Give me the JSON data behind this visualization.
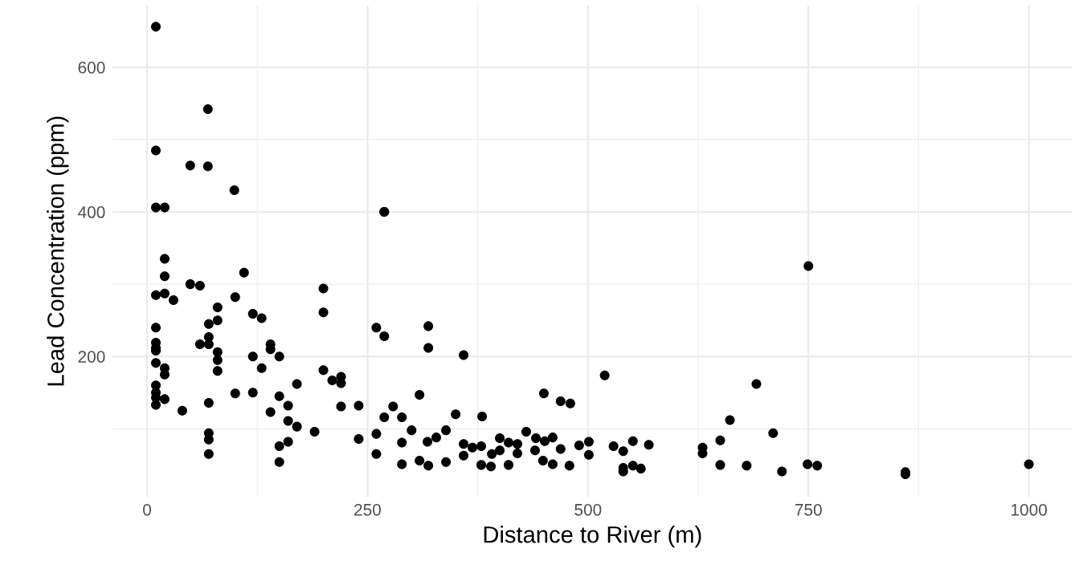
{
  "chart_data": {
    "type": "scatter",
    "xlabel": "Distance to River (m)",
    "ylabel": "Lead Concentration (ppm)",
    "xlim": [
      -39.5,
      1049.5
    ],
    "ylim": [
      6,
      685
    ],
    "xticks": [
      0,
      250,
      500,
      750,
      1000
    ],
    "yticks": [
      200,
      400,
      600
    ],
    "grid": true,
    "marker": "circle",
    "series": [
      {
        "color": "#000000",
        "x": [
          10,
          69,
          10,
          49,
          69,
          99,
          10,
          20,
          20,
          20,
          110,
          49,
          60,
          10,
          20,
          30,
          100,
          80,
          120,
          130,
          80,
          70,
          10,
          70,
          60,
          70,
          10,
          10,
          10,
          80,
          80,
          80,
          10,
          10,
          20,
          20,
          10,
          10,
          10,
          20,
          40,
          70,
          70,
          70,
          70,
          100,
          120,
          130,
          120,
          140,
          140,
          150,
          140,
          150,
          160,
          160,
          170,
          170,
          150,
          160,
          150,
          190,
          200,
          200,
          200,
          210,
          220,
          220,
          220,
          240,
          240,
          260,
          269,
          269,
          319,
          319,
          359,
          519,
          309,
          450,
          469,
          480,
          279,
          269,
          289,
          350,
          380,
          260,
          300,
          289,
          318,
          328,
          339,
          359,
          359,
          369,
          379,
          400,
          400,
          410,
          420,
          420,
          391,
          430,
          441,
          451,
          460,
          440,
          469,
          449,
          460,
          289,
          309,
          319,
          339,
          379,
          390,
          410,
          479,
          260,
          490,
          501,
          501,
          529,
          540,
          551,
          569,
          540,
          551,
          560,
          540,
          269,
          750,
          691,
          661,
          710,
          650,
          630,
          630,
          650,
          680,
          720,
          749,
          760,
          860,
          860,
          1000
        ],
        "values": [
          656,
          542,
          485,
          464,
          463,
          430,
          406,
          406,
          335,
          311,
          316,
          300,
          298,
          285,
          287,
          278,
          282,
          268,
          259,
          253,
          250,
          245,
          240,
          227,
          217,
          217,
          219,
          212,
          208,
          206,
          195,
          180,
          191,
          160,
          184,
          175,
          150,
          143,
          133,
          141,
          125,
          136,
          94,
          85,
          65,
          149,
          200,
          184,
          150,
          217,
          210,
          200,
          123,
          145,
          132,
          111,
          103,
          162,
          76,
          82,
          54,
          96,
          294,
          261,
          181,
          167,
          172,
          163,
          131,
          132,
          86,
          240,
          228,
          400,
          242,
          212,
          202,
          174,
          147,
          149,
          138,
          135,
          131,
          116,
          116,
          120,
          117,
          93,
          98,
          81,
          82,
          88,
          98,
          79,
          63,
          74,
          76,
          87,
          70,
          81,
          79,
          66,
          65,
          96,
          87,
          83,
          88,
          70,
          72,
          56,
          51,
          51,
          56,
          49,
          54,
          50,
          48,
          50,
          49,
          65,
          77,
          82,
          64,
          76,
          69,
          83,
          78,
          46,
          49,
          45,
          41,
          400,
          325,
          162,
          112,
          94,
          84,
          74,
          66,
          50,
          49,
          41,
          51,
          49,
          40,
          37,
          51
        ]
      }
    ]
  }
}
